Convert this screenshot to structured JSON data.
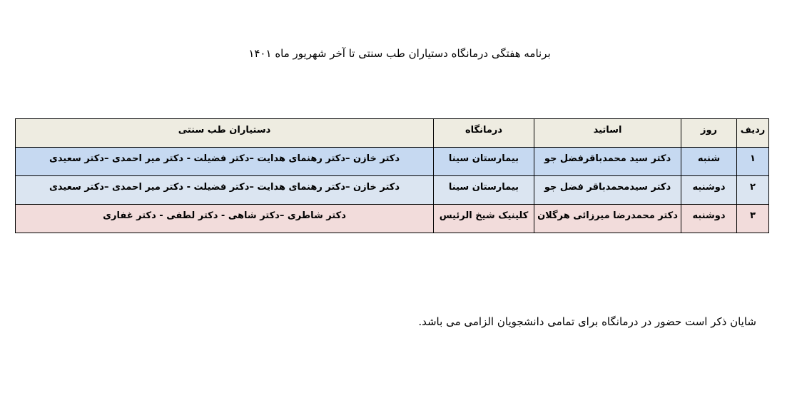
{
  "title": "برنامه هفتگی درمانگاه دستیاران طب سنتی تا آخر شهریور ماه ۱۴۰۱",
  "table": {
    "headers": [
      "ردیف",
      "روز",
      "اساتید",
      "درمانگاه",
      "دستیاران طب سنتی"
    ],
    "rows": [
      [
        "۱",
        "شنبه",
        "دکتر سید محمدباقرفضل جو",
        "بیمارستان سینا",
        "دکتر خازن –دکتر رهنمای هدایت –دکتر فضیلت - دکتر میر احمدی –دکتر سعیدی"
      ],
      [
        "۲",
        "دوشنبه",
        "دکتر سیدمحمدباقر فضل جو",
        "بیمارستان سینا",
        "دکتر خازن –دکتر رهنمای هدایت –دکتر فضیلت - دکتر میر احمدی –دکتر سعیدی"
      ],
      [
        "۳",
        "دوشنبه",
        "دکتر محمدرضا میرزائی هرگلان",
        "کلینیک شیخ الرئیس",
        "دکتر شاطری –دکتر شاهی - دکتر لطفی - دکتر غفاری"
      ]
    ],
    "colors": {
      "header": "#eeece1",
      "row1": "#c6d9f1",
      "row2": "#dbe5f1",
      "row3": "#f2dcdb"
    }
  },
  "footer": "شایان ذکر است حضور در درمانگاه برای تمامی دانشجویان الزامی می باشد."
}
